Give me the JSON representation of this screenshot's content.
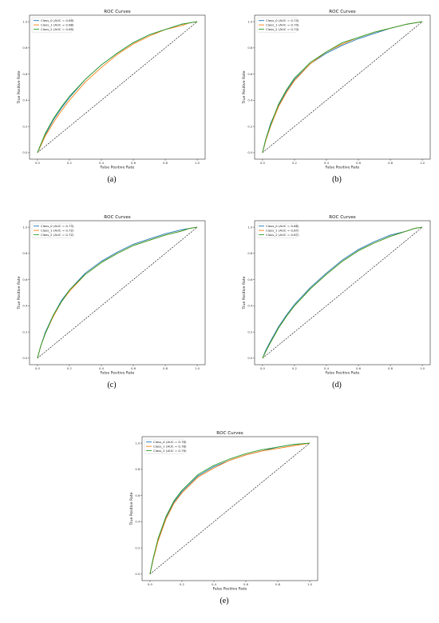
{
  "chart_data": [
    {
      "type": "line",
      "caption": "(a)",
      "title": "ROC Curves",
      "xlabel": "False Positive Rate",
      "ylabel": "True Positive Rate",
      "xlim": [
        0,
        1
      ],
      "ylim": [
        0,
        1
      ],
      "xticks": [
        "0.0",
        "0.2",
        "0.4",
        "0.6",
        "0.8",
        "1.0"
      ],
      "yticks": [
        "0.0",
        "0.2",
        "0.4",
        "0.6",
        "0.8",
        "1.0"
      ],
      "legend_position": "top-left",
      "grid": false,
      "diagonal": {
        "x": [
          0,
          1
        ],
        "y": [
          0,
          1
        ],
        "style": "dashed",
        "color": "#000000"
      },
      "series": [
        {
          "name": "Class_0 (AUC = 0.69)",
          "color": "#1f77b4",
          "x": [
            0,
            0.02,
            0.05,
            0.1,
            0.15,
            0.2,
            0.3,
            0.4,
            0.5,
            0.6,
            0.7,
            0.8,
            0.9,
            0.95,
            1.0
          ],
          "y": [
            0,
            0.06,
            0.14,
            0.25,
            0.34,
            0.42,
            0.56,
            0.67,
            0.76,
            0.84,
            0.9,
            0.94,
            0.98,
            0.99,
            1.0
          ]
        },
        {
          "name": "Class_1 (AUC = 0.68)",
          "color": "#ff7f0e",
          "x": [
            0,
            0.02,
            0.05,
            0.1,
            0.15,
            0.2,
            0.3,
            0.4,
            0.5,
            0.6,
            0.7,
            0.8,
            0.9,
            0.95,
            1.0
          ],
          "y": [
            0,
            0.05,
            0.13,
            0.23,
            0.32,
            0.4,
            0.54,
            0.65,
            0.75,
            0.83,
            0.89,
            0.94,
            0.97,
            0.99,
            1.0
          ]
        },
        {
          "name": "Class_2 (AUC = 0.69)",
          "color": "#2ca02c",
          "x": [
            0,
            0.02,
            0.05,
            0.1,
            0.15,
            0.2,
            0.3,
            0.4,
            0.5,
            0.6,
            0.7,
            0.8,
            0.9,
            0.95,
            1.0
          ],
          "y": [
            0,
            0.06,
            0.15,
            0.26,
            0.35,
            0.43,
            0.56,
            0.67,
            0.76,
            0.84,
            0.9,
            0.94,
            0.98,
            0.99,
            1.0
          ]
        }
      ]
    },
    {
      "type": "line",
      "caption": "(b)",
      "title": "ROC Curves",
      "xlabel": "False Positive Rate",
      "ylabel": "True Positive Rate",
      "xlim": [
        0,
        1
      ],
      "ylim": [
        0,
        1
      ],
      "xticks": [
        "0.0",
        "0.2",
        "0.4",
        "0.6",
        "0.8",
        "1.0"
      ],
      "yticks": [
        "0.0",
        "0.2",
        "0.4",
        "0.6",
        "0.8",
        "1.0"
      ],
      "legend_position": "top-left",
      "grid": false,
      "diagonal": {
        "x": [
          0,
          1
        ],
        "y": [
          0,
          1
        ],
        "style": "dashed",
        "color": "#000000"
      },
      "series": [
        {
          "name": "Class_0 (AUC = 0.74)",
          "color": "#1f77b4",
          "x": [
            0,
            0.02,
            0.05,
            0.1,
            0.15,
            0.2,
            0.3,
            0.4,
            0.5,
            0.6,
            0.7,
            0.8,
            0.9,
            0.95,
            1.0
          ],
          "y": [
            0,
            0.1,
            0.22,
            0.36,
            0.47,
            0.56,
            0.68,
            0.76,
            0.82,
            0.87,
            0.91,
            0.95,
            0.98,
            0.99,
            1.0
          ]
        },
        {
          "name": "Class_1 (AUC = 0.74)",
          "color": "#ff7f0e",
          "x": [
            0,
            0.02,
            0.05,
            0.1,
            0.15,
            0.2,
            0.3,
            0.4,
            0.5,
            0.6,
            0.7,
            0.8,
            0.9,
            0.95,
            1.0
          ],
          "y": [
            0,
            0.09,
            0.2,
            0.35,
            0.46,
            0.55,
            0.68,
            0.77,
            0.83,
            0.88,
            0.92,
            0.95,
            0.98,
            0.99,
            1.0
          ]
        },
        {
          "name": "Class_2 (AUC = 0.74)",
          "color": "#2ca02c",
          "x": [
            0,
            0.02,
            0.05,
            0.1,
            0.15,
            0.2,
            0.3,
            0.4,
            0.5,
            0.6,
            0.7,
            0.8,
            0.9,
            0.95,
            1.0
          ],
          "y": [
            0,
            0.1,
            0.21,
            0.37,
            0.48,
            0.57,
            0.69,
            0.77,
            0.84,
            0.88,
            0.92,
            0.95,
            0.98,
            0.99,
            1.0
          ]
        }
      ]
    },
    {
      "type": "line",
      "caption": "(c)",
      "title": "ROC Curves",
      "xlabel": "False Positive Rate",
      "ylabel": "True Positive Rate",
      "xlim": [
        0,
        1
      ],
      "ylim": [
        0,
        1
      ],
      "xticks": [
        "0.0",
        "0.2",
        "0.4",
        "0.6",
        "0.8",
        "1.0"
      ],
      "yticks": [
        "0.0",
        "0.2",
        "0.4",
        "0.6",
        "0.8",
        "1.0"
      ],
      "legend_position": "top-left",
      "grid": false,
      "diagonal": {
        "x": [
          0,
          1
        ],
        "y": [
          0,
          1
        ],
        "style": "dashed",
        "color": "#000000"
      },
      "series": [
        {
          "name": "Class_0 (AUC = 0.73)",
          "color": "#1f77b4",
          "x": [
            0,
            0.02,
            0.05,
            0.1,
            0.15,
            0.2,
            0.3,
            0.4,
            0.5,
            0.6,
            0.7,
            0.8,
            0.9,
            0.95,
            1.0
          ],
          "y": [
            0,
            0.09,
            0.2,
            0.33,
            0.44,
            0.52,
            0.65,
            0.74,
            0.81,
            0.87,
            0.91,
            0.95,
            0.98,
            0.99,
            1.0
          ]
        },
        {
          "name": "Class_1 (AUC = 0.72)",
          "color": "#ff7f0e",
          "x": [
            0,
            0.02,
            0.05,
            0.1,
            0.15,
            0.2,
            0.3,
            0.4,
            0.5,
            0.6,
            0.7,
            0.8,
            0.9,
            0.95,
            1.0
          ],
          "y": [
            0,
            0.09,
            0.19,
            0.32,
            0.43,
            0.51,
            0.64,
            0.73,
            0.8,
            0.86,
            0.9,
            0.94,
            0.97,
            0.99,
            1.0
          ]
        },
        {
          "name": "Class_2 (AUC = 0.72)",
          "color": "#2ca02c",
          "x": [
            0,
            0.02,
            0.05,
            0.1,
            0.15,
            0.2,
            0.3,
            0.4,
            0.5,
            0.6,
            0.7,
            0.8,
            0.9,
            0.95,
            1.0
          ],
          "y": [
            0,
            0.09,
            0.19,
            0.33,
            0.43,
            0.52,
            0.64,
            0.73,
            0.8,
            0.86,
            0.9,
            0.94,
            0.97,
            0.99,
            1.0
          ]
        }
      ]
    },
    {
      "type": "line",
      "caption": "(d)",
      "title": "ROC Curves",
      "xlabel": "False Positive Rate",
      "ylabel": "True Positive Rate",
      "xlim": [
        0,
        1
      ],
      "ylim": [
        0,
        1
      ],
      "xticks": [
        "0.0",
        "0.2",
        "0.4",
        "0.6",
        "0.8",
        "1.0"
      ],
      "yticks": [
        "0.0",
        "0.2",
        "0.4",
        "0.6",
        "0.8",
        "1.0"
      ],
      "legend_position": "top-left",
      "grid": false,
      "diagonal": {
        "x": [
          0,
          1
        ],
        "y": [
          0,
          1
        ],
        "style": "dashed",
        "color": "#000000"
      },
      "series": [
        {
          "name": "Class_0 (AUC = 0.68)",
          "color": "#1f77b4",
          "x": [
            0,
            0.02,
            0.05,
            0.1,
            0.15,
            0.2,
            0.3,
            0.4,
            0.5,
            0.6,
            0.7,
            0.8,
            0.9,
            0.95,
            1.0
          ],
          "y": [
            0,
            0.06,
            0.13,
            0.24,
            0.33,
            0.41,
            0.54,
            0.65,
            0.75,
            0.83,
            0.89,
            0.94,
            0.97,
            0.99,
            1.0
          ]
        },
        {
          "name": "Class_1 (AUC = 0.67)",
          "color": "#ff7f0e",
          "x": [
            0,
            0.02,
            0.05,
            0.1,
            0.15,
            0.2,
            0.3,
            0.4,
            0.5,
            0.6,
            0.7,
            0.8,
            0.9,
            0.95,
            1.0
          ],
          "y": [
            0,
            0.05,
            0.12,
            0.23,
            0.32,
            0.4,
            0.53,
            0.64,
            0.74,
            0.82,
            0.88,
            0.93,
            0.97,
            0.99,
            1.0
          ]
        },
        {
          "name": "Class_2 (AUC = 0.67)",
          "color": "#2ca02c",
          "x": [
            0,
            0.02,
            0.05,
            0.1,
            0.15,
            0.2,
            0.3,
            0.4,
            0.5,
            0.6,
            0.7,
            0.8,
            0.9,
            0.95,
            1.0
          ],
          "y": [
            0,
            0.05,
            0.12,
            0.23,
            0.32,
            0.4,
            0.53,
            0.64,
            0.74,
            0.82,
            0.88,
            0.93,
            0.97,
            0.99,
            1.0
          ]
        }
      ]
    },
    {
      "type": "line",
      "caption": "(e)",
      "title": "ROC Curves",
      "xlabel": "False Positive Rate",
      "ylabel": "True Positive Rate",
      "xlim": [
        0,
        1
      ],
      "ylim": [
        0,
        1
      ],
      "xticks": [
        "0.0",
        "0.2",
        "0.4",
        "0.6",
        "0.8",
        "1.0"
      ],
      "yticks": [
        "0.0",
        "0.2",
        "0.4",
        "0.6",
        "0.8",
        "1.0"
      ],
      "legend_position": "top-left",
      "grid": false,
      "diagonal": {
        "x": [
          0,
          1
        ],
        "y": [
          0,
          1
        ],
        "style": "dashed",
        "color": "#000000"
      },
      "series": [
        {
          "name": "Class_0 (AUC = 0.78)",
          "color": "#1f77b4",
          "x": [
            0,
            0.02,
            0.05,
            0.1,
            0.15,
            0.2,
            0.3,
            0.4,
            0.5,
            0.6,
            0.7,
            0.8,
            0.9,
            0.95,
            1.0
          ],
          "y": [
            0,
            0.12,
            0.26,
            0.43,
            0.55,
            0.63,
            0.75,
            0.82,
            0.87,
            0.91,
            0.94,
            0.97,
            0.99,
            0.995,
            1.0
          ]
        },
        {
          "name": "Class_1 (AUC = 0.78)",
          "color": "#ff7f0e",
          "x": [
            0,
            0.02,
            0.05,
            0.1,
            0.15,
            0.2,
            0.3,
            0.4,
            0.5,
            0.6,
            0.7,
            0.8,
            0.9,
            0.95,
            1.0
          ],
          "y": [
            0,
            0.11,
            0.25,
            0.42,
            0.54,
            0.62,
            0.74,
            0.81,
            0.87,
            0.91,
            0.94,
            0.96,
            0.98,
            0.99,
            1.0
          ]
        },
        {
          "name": "Class_2 (AUC = 0.79)",
          "color": "#2ca02c",
          "x": [
            0,
            0.02,
            0.05,
            0.1,
            0.15,
            0.2,
            0.3,
            0.4,
            0.5,
            0.6,
            0.7,
            0.8,
            0.9,
            0.95,
            1.0
          ],
          "y": [
            0,
            0.12,
            0.27,
            0.44,
            0.56,
            0.64,
            0.76,
            0.83,
            0.88,
            0.92,
            0.95,
            0.97,
            0.99,
            0.995,
            1.0
          ]
        }
      ]
    }
  ]
}
